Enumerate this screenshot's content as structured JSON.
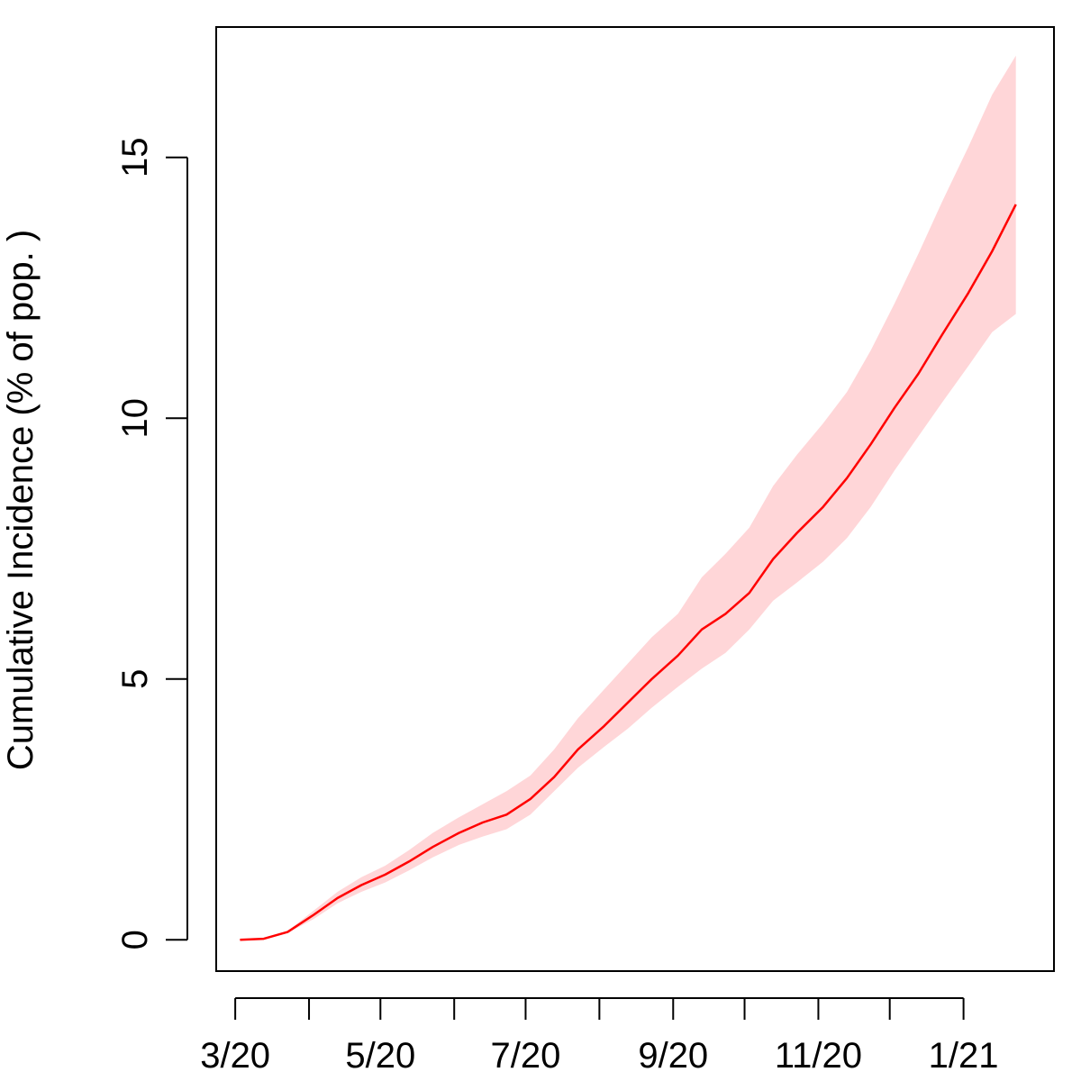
{
  "chart_data": {
    "type": "line",
    "title": "",
    "xlabel": "",
    "ylabel": "Cumulative Incidence (% of pop. )",
    "xlim": [
      "2020-02-22",
      "2021-02-08"
    ],
    "ylim": [
      -0.6,
      17.5
    ],
    "grid": false,
    "colors": {
      "line": "#ff0000",
      "band": "#ffd6d8"
    },
    "x_ticks": [
      {
        "date": "2020-03-01",
        "label": "3/20"
      },
      {
        "date": "2020-04-01",
        "label": ""
      },
      {
        "date": "2020-05-01",
        "label": "5/20"
      },
      {
        "date": "2020-06-01",
        "label": ""
      },
      {
        "date": "2020-07-01",
        "label": "7/20"
      },
      {
        "date": "2020-08-01",
        "label": ""
      },
      {
        "date": "2020-09-01",
        "label": "9/20"
      },
      {
        "date": "2020-10-01",
        "label": ""
      },
      {
        "date": "2020-11-01",
        "label": "11/20"
      },
      {
        "date": "2020-12-01",
        "label": ""
      },
      {
        "date": "2021-01-01",
        "label": "1/21"
      }
    ],
    "y_ticks": [
      {
        "value": 0,
        "label": "0"
      },
      {
        "value": 5,
        "label": "5"
      },
      {
        "value": 10,
        "label": "10"
      },
      {
        "value": 15,
        "label": "15"
      }
    ],
    "series": [
      {
        "x": [
          "2020-03-03",
          "2020-03-13",
          "2020-03-23",
          "2020-04-03",
          "2020-04-13",
          "2020-04-23",
          "2020-05-03",
          "2020-05-13",
          "2020-05-23",
          "2020-06-03",
          "2020-06-13",
          "2020-06-23",
          "2020-07-03",
          "2020-07-13",
          "2020-07-23",
          "2020-08-03",
          "2020-08-13",
          "2020-08-23",
          "2020-09-03",
          "2020-09-13",
          "2020-09-23",
          "2020-10-03",
          "2020-10-13",
          "2020-10-23",
          "2020-11-03",
          "2020-11-13",
          "2020-11-23",
          "2020-12-03",
          "2020-12-13",
          "2020-12-23",
          "2021-01-03",
          "2021-01-13",
          "2021-01-23"
        ],
        "y": [
          0.0,
          0.02,
          0.15,
          0.48,
          0.8,
          1.05,
          1.25,
          1.5,
          1.78,
          2.05,
          2.25,
          2.4,
          2.7,
          3.12,
          3.65,
          4.1,
          4.55,
          5.0,
          5.45,
          5.95,
          6.25,
          6.65,
          7.3,
          7.8,
          8.3,
          8.85,
          9.5,
          10.2,
          10.85,
          11.6,
          12.4,
          13.2,
          14.1
        ],
        "lower": [
          0.0,
          0.02,
          0.13,
          0.4,
          0.7,
          0.92,
          1.1,
          1.33,
          1.58,
          1.82,
          1.98,
          2.12,
          2.4,
          2.85,
          3.3,
          3.7,
          4.05,
          4.45,
          4.85,
          5.2,
          5.5,
          5.95,
          6.5,
          6.85,
          7.25,
          7.7,
          8.3,
          9.0,
          9.65,
          10.3,
          11.0,
          11.65,
          12.0
        ],
        "upper": [
          0.0,
          0.02,
          0.17,
          0.56,
          0.92,
          1.2,
          1.42,
          1.72,
          2.05,
          2.35,
          2.6,
          2.85,
          3.15,
          3.65,
          4.25,
          4.8,
          5.3,
          5.8,
          6.25,
          6.95,
          7.4,
          7.9,
          8.7,
          9.3,
          9.9,
          10.5,
          11.3,
          12.2,
          13.15,
          14.15,
          15.2,
          16.2,
          16.95
        ]
      }
    ]
  }
}
